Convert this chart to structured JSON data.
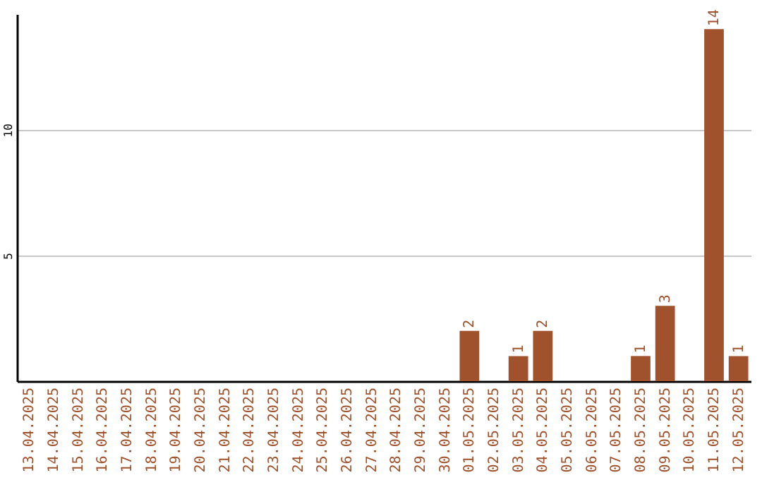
{
  "chart_data": {
    "type": "bar",
    "categories": [
      "13.04.2025",
      "14.04.2025",
      "15.04.2025",
      "16.04.2025",
      "17.04.2025",
      "18.04.2025",
      "19.04.2025",
      "20.04.2025",
      "21.04.2025",
      "22.04.2025",
      "23.04.2025",
      "24.04.2025",
      "25.04.2025",
      "26.04.2025",
      "27.04.2025",
      "28.04.2025",
      "29.04.2025",
      "30.04.2025",
      "01.05.2025",
      "02.05.2025",
      "03.05.2025",
      "04.05.2025",
      "05.05.2025",
      "06.05.2025",
      "07.05.2025",
      "08.05.2025",
      "09.05.2025",
      "10.05.2025",
      "11.05.2025",
      "12.05.2025"
    ],
    "values": [
      0,
      0,
      0,
      0,
      0,
      0,
      0,
      0,
      0,
      0,
      0,
      0,
      0,
      0,
      0,
      0,
      0,
      0,
      2,
      0,
      1,
      2,
      0,
      0,
      0,
      1,
      3,
      0,
      14,
      1
    ],
    "value_labels": [
      null,
      null,
      null,
      null,
      null,
      null,
      null,
      null,
      null,
      null,
      null,
      null,
      null,
      null,
      null,
      null,
      null,
      null,
      "2",
      null,
      "1",
      "2",
      null,
      null,
      null,
      "1",
      "3",
      null,
      "14",
      "1"
    ],
    "color": "#a0522d",
    "ylim": [
      0,
      14.6
    ],
    "yticks": [
      5,
      10
    ],
    "grid": "y"
  }
}
